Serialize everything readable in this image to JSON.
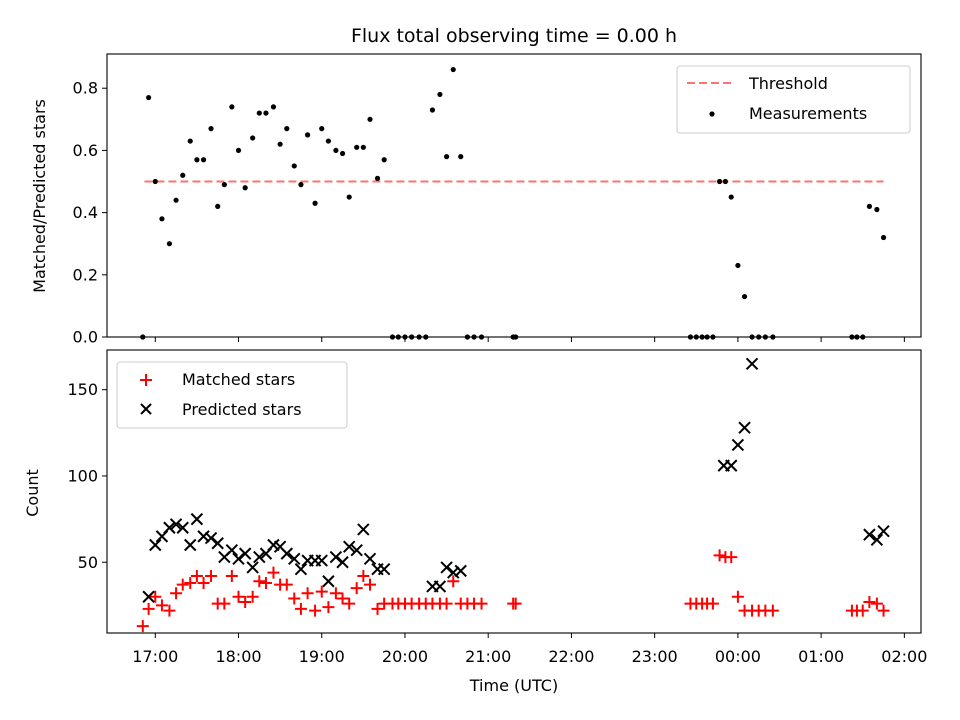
{
  "chart_data": [
    {
      "type": "scatter",
      "title": "Flux total observing time = 0.00 h",
      "xlabel": "",
      "ylabel": "Matched/Predicted stars",
      "xlim": [
        16.42,
        26.2
      ],
      "ylim": [
        0,
        0.91
      ],
      "yticks": [
        0.0,
        0.2,
        0.4,
        0.6,
        0.8
      ],
      "ytick_labels": [
        "0.0",
        "0.2",
        "0.4",
        "0.6",
        "0.8"
      ],
      "legend_position": "upper right",
      "legend": [
        {
          "label": "Threshold",
          "style": "dashed-line",
          "color": "#ff7070"
        },
        {
          "label": "Measurements",
          "style": "dot",
          "color": "#000000"
        }
      ],
      "threshold": {
        "name": "Threshold",
        "y": 0.5,
        "x_start": 16.87,
        "x_end": 25.75,
        "color": "#ff7070"
      },
      "series": [
        {
          "name": "Measurements",
          "marker": "dot",
          "color": "#000000",
          "x": [
            16.85,
            16.92,
            17.0,
            17.08,
            17.17,
            17.25,
            17.33,
            17.42,
            17.5,
            17.58,
            17.67,
            17.75,
            17.83,
            17.92,
            18.0,
            18.08,
            18.17,
            18.25,
            18.33,
            18.42,
            18.5,
            18.58,
            18.67,
            18.75,
            18.83,
            18.92,
            19.0,
            19.08,
            19.17,
            19.25,
            19.33,
            19.42,
            19.5,
            19.58,
            19.67,
            19.75,
            19.85,
            19.92,
            20.0,
            20.08,
            20.17,
            20.25,
            20.33,
            20.42,
            20.5,
            20.58,
            20.67,
            20.75,
            20.83,
            20.92,
            21.3,
            21.33,
            23.43,
            23.5,
            23.57,
            23.63,
            23.7,
            23.78,
            23.85,
            23.92,
            24.0,
            24.08,
            24.17,
            24.25,
            24.33,
            24.42,
            25.37,
            25.43,
            25.5,
            25.58,
            25.67,
            25.75
          ],
          "y": [
            0.0,
            0.77,
            0.5,
            0.38,
            0.3,
            0.44,
            0.52,
            0.63,
            0.57,
            0.57,
            0.67,
            0.42,
            0.49,
            0.74,
            0.6,
            0.48,
            0.64,
            0.72,
            0.72,
            0.74,
            0.62,
            0.67,
            0.55,
            0.49,
            0.65,
            0.43,
            0.67,
            0.63,
            0.6,
            0.59,
            0.45,
            0.61,
            0.61,
            0.7,
            0.51,
            0.57,
            0.0,
            0.0,
            0.0,
            0.0,
            0.0,
            0.0,
            0.73,
            0.78,
            0.58,
            0.86,
            0.58,
            0.0,
            0.0,
            0.0,
            0.0,
            0.0,
            0.0,
            0.0,
            0.0,
            0.0,
            0.0,
            0.5,
            0.5,
            0.45,
            0.23,
            0.13,
            0.0,
            0.0,
            0.0,
            0.0,
            0.0,
            0.0,
            0.0,
            0.42,
            0.41,
            0.32
          ]
        }
      ]
    },
    {
      "type": "scatter",
      "title": "",
      "xlabel": "Time (UTC)",
      "ylabel": "Count",
      "xlim": [
        16.42,
        26.2
      ],
      "ylim": [
        9,
        173
      ],
      "yticks": [
        50,
        100,
        150
      ],
      "ytick_labels": [
        "50",
        "100",
        "150"
      ],
      "xticks": [
        17,
        18,
        19,
        20,
        21,
        22,
        23,
        24,
        25,
        26
      ],
      "xtick_labels": [
        "17:00",
        "18:00",
        "19:00",
        "20:00",
        "21:00",
        "22:00",
        "23:00",
        "00:00",
        "01:00",
        "02:00"
      ],
      "legend_position": "upper left",
      "legend": [
        {
          "label": "Matched stars",
          "style": "plus",
          "color": "#ff0000"
        },
        {
          "label": "Predicted stars",
          "style": "x",
          "color": "#000000"
        }
      ],
      "series": [
        {
          "name": "Matched stars",
          "marker": "plus",
          "color": "#ff0000",
          "x": [
            16.85,
            16.92,
            17.0,
            17.08,
            17.17,
            17.25,
            17.33,
            17.42,
            17.5,
            17.58,
            17.67,
            17.75,
            17.83,
            17.92,
            18.0,
            18.08,
            18.17,
            18.25,
            18.33,
            18.42,
            18.5,
            18.58,
            18.67,
            18.75,
            18.83,
            18.92,
            19.0,
            19.08,
            19.17,
            19.25,
            19.33,
            19.42,
            19.5,
            19.58,
            19.67,
            19.75,
            19.85,
            19.92,
            20.0,
            20.08,
            20.17,
            20.25,
            20.33,
            20.42,
            20.5,
            20.58,
            20.67,
            20.75,
            20.83,
            20.92,
            21.3,
            21.33,
            23.43,
            23.5,
            23.57,
            23.63,
            23.7,
            23.78,
            23.85,
            23.92,
            24.0,
            24.08,
            24.17,
            24.25,
            24.33,
            24.42,
            25.37,
            25.43,
            25.5,
            25.58,
            25.67,
            25.75
          ],
          "y": [
            13,
            23,
            30,
            25,
            22,
            32,
            37,
            38,
            42,
            38,
            42,
            26,
            26,
            42,
            30,
            27,
            30,
            39,
            38,
            44,
            37,
            37,
            29,
            23,
            32,
            22,
            33,
            24,
            32,
            29,
            26,
            35,
            42,
            37,
            23,
            26,
            26,
            26,
            26,
            26,
            26,
            26,
            26,
            26,
            26,
            39,
            26,
            26,
            26,
            26,
            26,
            26,
            26,
            26,
            26,
            26,
            26,
            54,
            53,
            53,
            30,
            22,
            22,
            22,
            22,
            22,
            22,
            22,
            22,
            27,
            26,
            22
          ]
        },
        {
          "name": "Predicted stars",
          "marker": "x",
          "color": "#000000",
          "x": [
            16.92,
            17.0,
            17.08,
            17.17,
            17.25,
            17.33,
            17.42,
            17.5,
            17.58,
            17.67,
            17.75,
            17.83,
            17.92,
            18.0,
            18.08,
            18.17,
            18.25,
            18.33,
            18.42,
            18.5,
            18.58,
            18.67,
            18.75,
            18.83,
            18.92,
            19.0,
            19.08,
            19.17,
            19.25,
            19.33,
            19.42,
            19.5,
            19.58,
            19.67,
            19.75,
            20.33,
            20.42,
            20.5,
            20.58,
            20.67,
            23.83,
            23.92,
            24.0,
            24.08,
            24.17,
            25.58,
            25.67,
            25.75
          ],
          "y": [
            30,
            60,
            65,
            70,
            72,
            70,
            60,
            75,
            65,
            64,
            61,
            53,
            57,
            52,
            55,
            47,
            53,
            55,
            60,
            59,
            55,
            52,
            46,
            51,
            51,
            51,
            39,
            53,
            50,
            59,
            57,
            69,
            52,
            46,
            46,
            36,
            36,
            47,
            44,
            45,
            106,
            106,
            118,
            128,
            165,
            66,
            63,
            68
          ]
        }
      ]
    }
  ]
}
